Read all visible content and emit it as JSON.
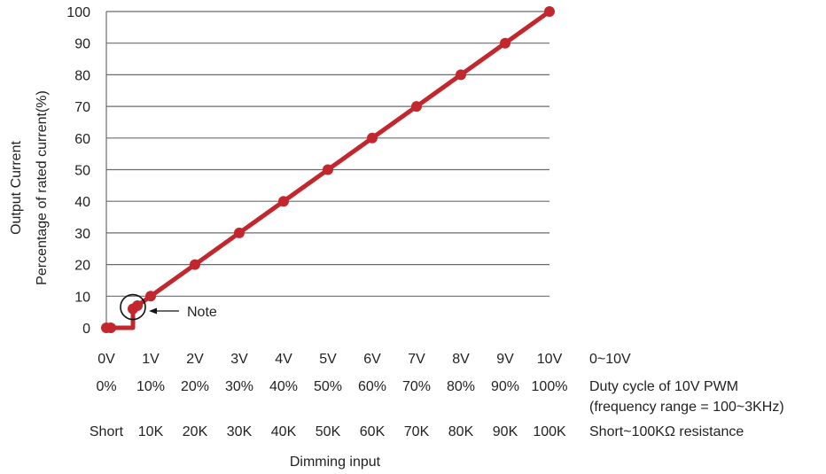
{
  "chart_data": {
    "type": "line",
    "xlabel": "Dimming input",
    "ylabel_lines": [
      "Output Current",
      "Percentage of rated current(%)"
    ],
    "ylim": [
      0,
      100
    ],
    "yticks": [
      0,
      10,
      20,
      30,
      40,
      50,
      60,
      70,
      80,
      90,
      100
    ],
    "grid": true,
    "x_label_rows": [
      {
        "labels": [
          "0V",
          "1V",
          "2V",
          "3V",
          "4V",
          "5V",
          "6V",
          "7V",
          "8V",
          "9V",
          "10V"
        ],
        "description": [
          "0~10V"
        ]
      },
      {
        "labels": [
          "0%",
          "10%",
          "20%",
          "30%",
          "40%",
          "50%",
          "60%",
          "70%",
          "80%",
          "90%",
          "100%"
        ],
        "description": [
          "Duty cycle of 10V PWM",
          "(frequency range = 100~3KHz)"
        ]
      },
      {
        "labels": [
          "Short",
          "10K",
          "20K",
          "30K",
          "40K",
          "50K",
          "60K",
          "70K",
          "80K",
          "90K",
          "100K"
        ],
        "description": [
          "Short~100KΩ resistance"
        ]
      }
    ],
    "series": [
      {
        "color": "#c1272d",
        "points": [
          {
            "x": 0,
            "y": 0
          },
          {
            "x": 0.1,
            "y": 0
          },
          {
            "x": 0.6,
            "y": 0
          },
          {
            "x": 0.6,
            "y": 6
          },
          {
            "x": 0.7,
            "y": 7
          },
          {
            "x": 1,
            "y": 10
          },
          {
            "x": 2,
            "y": 20
          },
          {
            "x": 3,
            "y": 30
          },
          {
            "x": 4,
            "y": 40
          },
          {
            "x": 5,
            "y": 50
          },
          {
            "x": 6,
            "y": 60
          },
          {
            "x": 7,
            "y": 70
          },
          {
            "x": 8,
            "y": 80
          },
          {
            "x": 9,
            "y": 90
          },
          {
            "x": 10,
            "y": 100
          }
        ],
        "markers": [
          {
            "x": 0,
            "y": 0
          },
          {
            "x": 0.1,
            "y": 0
          },
          {
            "x": 0.6,
            "y": 6
          },
          {
            "x": 0.7,
            "y": 7
          },
          {
            "x": 1,
            "y": 10
          },
          {
            "x": 2,
            "y": 20
          },
          {
            "x": 3,
            "y": 30
          },
          {
            "x": 4,
            "y": 40
          },
          {
            "x": 5,
            "y": 50
          },
          {
            "x": 6,
            "y": 60
          },
          {
            "x": 7,
            "y": 70
          },
          {
            "x": 8,
            "y": 80
          },
          {
            "x": 9,
            "y": 90
          },
          {
            "x": 10,
            "y": 100
          }
        ]
      }
    ],
    "annotation": {
      "text": "Note",
      "x": 0.6,
      "y": 6
    }
  }
}
